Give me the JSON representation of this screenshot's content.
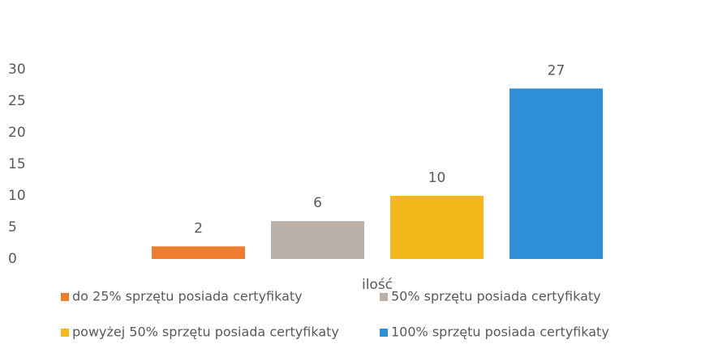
{
  "chart_data": {
    "type": "bar",
    "categories": [
      "ilość"
    ],
    "series": [
      {
        "name": "do 25% sprzętu posiada certyfikaty",
        "color": "#ed7d31",
        "values": [
          2
        ]
      },
      {
        "name": "50% sprzętu posiada certyfikaty",
        "color": "#bcb1a8",
        "values": [
          6
        ]
      },
      {
        "name": "powyżej 50% sprzętu posiada certyfikaty",
        "color": "#f4b81c",
        "values": [
          10
        ]
      },
      {
        "name": "100% sprzętu posiada certyfikaty",
        "color": "#2e8fd6",
        "values": [
          27
        ]
      }
    ],
    "ylim": [
      0,
      30
    ],
    "yticks": [
      0,
      5,
      10,
      15,
      20,
      25,
      30
    ],
    "grid": false,
    "legend": "bottom"
  }
}
